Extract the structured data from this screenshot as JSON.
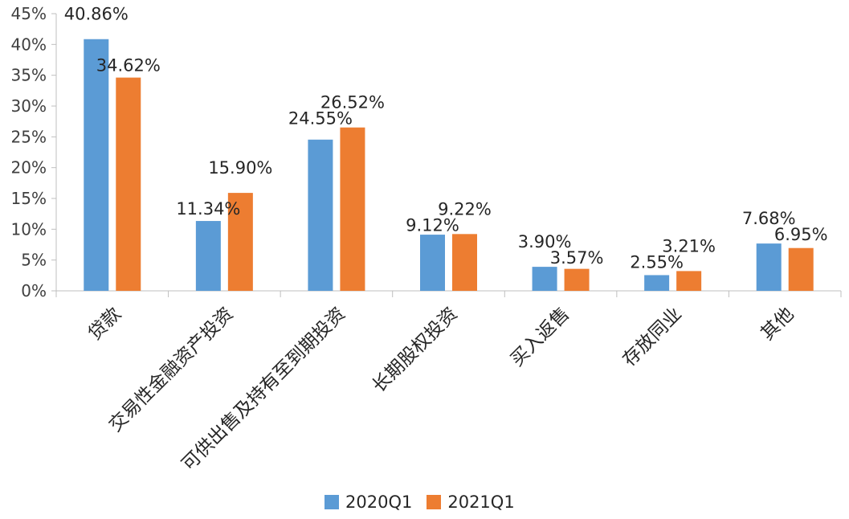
{
  "chart_data": {
    "type": "bar",
    "categories": [
      "贷款",
      "交易性金融资产投资",
      "可供出售及持有至到期投资",
      "长期股权投资",
      "买入返售",
      "存放同业",
      "其他"
    ],
    "series": [
      {
        "name": "2020Q1",
        "color": "#5b9bd5",
        "values": [
          40.86,
          11.34,
          24.55,
          9.12,
          3.9,
          2.55,
          7.68
        ]
      },
      {
        "name": "2021Q1",
        "color": "#ed7d31",
        "values": [
          34.62,
          15.9,
          26.52,
          9.22,
          3.57,
          3.21,
          6.95
        ]
      }
    ],
    "data_labels": [
      [
        "40.86%",
        "11.34%",
        "24.55%",
        "9.12%",
        "3.90%",
        "2.55%",
        "7.68%"
      ],
      [
        "34.62%",
        "15.90%",
        "26.52%",
        "9.22%",
        "3.57%",
        "3.21%",
        "6.95%"
      ]
    ],
    "y_ticks": [
      "0%",
      "5%",
      "10%",
      "15%",
      "20%",
      "25%",
      "30%",
      "35%",
      "40%",
      "45%"
    ],
    "ylim": [
      0,
      45
    ],
    "grid": false,
    "legend_position": "bottom"
  }
}
